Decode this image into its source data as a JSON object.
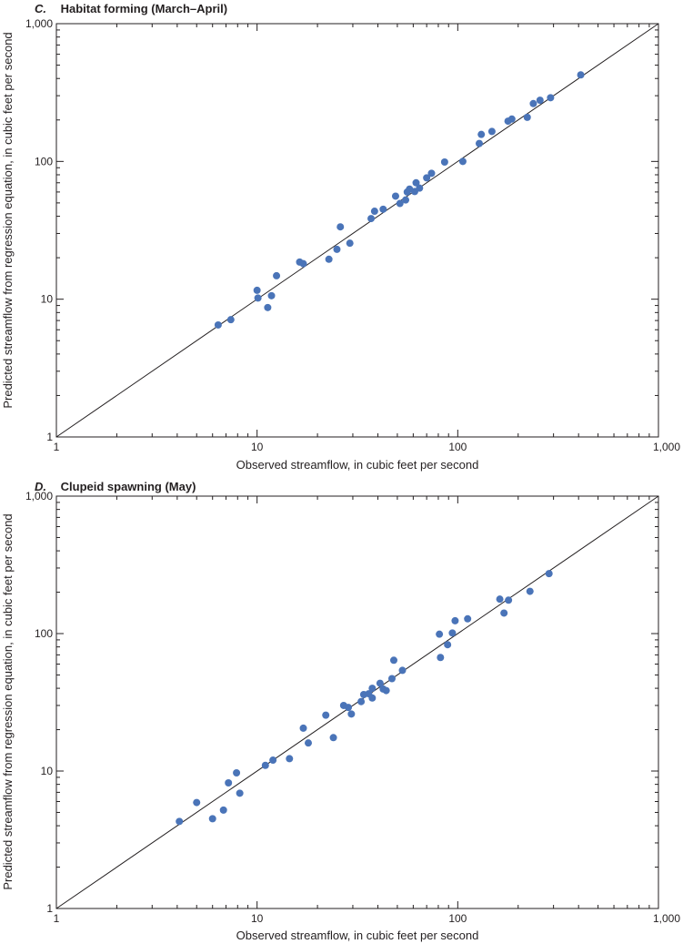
{
  "chart_data": [
    {
      "type": "scatter",
      "panel_letter": "C.",
      "title": "Habitat forming (March–April)",
      "xlabel": "Observed streamflow, in cubic feet per second",
      "ylabel": "Predicted streamflow from regression equation, in cubic feet per second",
      "xscale": "log",
      "yscale": "log",
      "xlim": [
        1,
        1000
      ],
      "ylim": [
        1,
        1000
      ],
      "x_ticks": [
        1,
        10,
        100,
        1000
      ],
      "x_tick_labels": [
        "1",
        "10",
        "100",
        "1,000"
      ],
      "y_ticks": [
        1,
        10,
        100,
        1000
      ],
      "y_tick_labels": [
        "1",
        "10",
        "100",
        "1,000"
      ],
      "reference_line": "1:1 line",
      "point_color": "#4a74b8",
      "points": [
        [
          6.4,
          6.5
        ],
        [
          7.4,
          7.1
        ],
        [
          10.0,
          11.6
        ],
        [
          10.1,
          10.2
        ],
        [
          11.3,
          8.7
        ],
        [
          11.8,
          10.6
        ],
        [
          12.5,
          14.8
        ],
        [
          16.3,
          18.6
        ],
        [
          17.0,
          18.1
        ],
        [
          22.8,
          19.5
        ],
        [
          25.0,
          23.0
        ],
        [
          26.0,
          33.5
        ],
        [
          29.0,
          25.5
        ],
        [
          37.0,
          38.5
        ],
        [
          38.5,
          43.5
        ],
        [
          42.5,
          45.0
        ],
        [
          49.0,
          56.0
        ],
        [
          51.5,
          49.5
        ],
        [
          55.0,
          52.5
        ],
        [
          56.0,
          60.0
        ],
        [
          57.5,
          63.0
        ],
        [
          61.0,
          60.5
        ],
        [
          62.0,
          70.0
        ],
        [
          64.5,
          64.0
        ],
        [
          70.0,
          76.0
        ],
        [
          74.0,
          82.0
        ],
        [
          86.0,
          99.0
        ],
        [
          106.0,
          100.0
        ],
        [
          128.0,
          135.0
        ],
        [
          131.0,
          157.0
        ],
        [
          148.0,
          165.0
        ],
        [
          178.0,
          196.0
        ],
        [
          186.0,
          203.0
        ],
        [
          222.0,
          209.0
        ],
        [
          238.0,
          263.0
        ],
        [
          257.0,
          278.0
        ],
        [
          290.0,
          290.0
        ],
        [
          410.0,
          425.0
        ]
      ]
    },
    {
      "type": "scatter",
      "panel_letter": "D.",
      "title": "Clupeid spawning (May)",
      "xlabel": "Observed streamflow, in cubic feet per second",
      "ylabel": "Predicted streamflow from regression equation, in cubic feet per second",
      "xscale": "log",
      "yscale": "log",
      "xlim": [
        1,
        1000
      ],
      "ylim": [
        1,
        1000
      ],
      "x_ticks": [
        1,
        10,
        100,
        1000
      ],
      "x_tick_labels": [
        "1",
        "10",
        "100",
        "1,000"
      ],
      "y_ticks": [
        1,
        10,
        100,
        1000
      ],
      "y_tick_labels": [
        "1",
        "10",
        "100",
        "1,000"
      ],
      "reference_line": "1:1 line",
      "point_color": "#4a74b8",
      "points": [
        [
          4.1,
          4.3
        ],
        [
          5.0,
          5.9
        ],
        [
          6.0,
          4.5
        ],
        [
          6.8,
          5.2
        ],
        [
          7.2,
          8.2
        ],
        [
          7.9,
          9.7
        ],
        [
          8.2,
          6.9
        ],
        [
          11.0,
          11.0
        ],
        [
          12.0,
          12.0
        ],
        [
          14.5,
          12.3
        ],
        [
          17.0,
          20.5
        ],
        [
          18.0,
          16.0
        ],
        [
          22.0,
          25.5
        ],
        [
          24.0,
          17.5
        ],
        [
          27.0,
          30.0
        ],
        [
          28.5,
          29.0
        ],
        [
          29.5,
          26.0
        ],
        [
          33.0,
          32.0
        ],
        [
          34.0,
          36.0
        ],
        [
          36.0,
          36.5
        ],
        [
          37.5,
          34.0
        ],
        [
          37.5,
          40.0
        ],
        [
          41.0,
          43.5
        ],
        [
          42.5,
          39.5
        ],
        [
          44.0,
          38.5
        ],
        [
          47.0,
          47.0
        ],
        [
          48.0,
          64.0
        ],
        [
          53.0,
          54.0
        ],
        [
          81.0,
          99.0
        ],
        [
          82.0,
          67.0
        ],
        [
          89.0,
          83.0
        ],
        [
          94.0,
          101.0
        ],
        [
          97.0,
          124.0
        ],
        [
          112.0,
          128.0
        ],
        [
          162.0,
          178.0
        ],
        [
          170.0,
          141.0
        ],
        [
          179.0,
          175.0
        ],
        [
          229.0,
          203.0
        ],
        [
          285.0,
          273.0
        ]
      ]
    }
  ]
}
